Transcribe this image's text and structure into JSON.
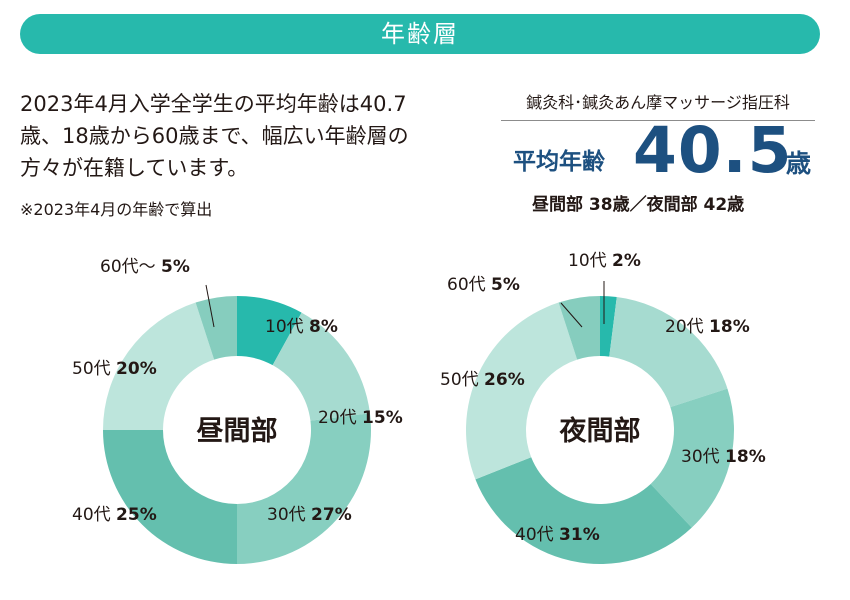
{
  "header": {
    "title": "年齢層"
  },
  "intro": {
    "lines": [
      "2023年4月入学全学生の平均年齢は40.7",
      "歳、18歳から60歳まで、幅広い年齢層の",
      "方々が在籍しています。"
    ],
    "note": "※2023年4月の年齢で算出"
  },
  "summary": {
    "dept": "鍼灸科･鍼灸あん摩マッサージ指圧科",
    "avg_label": "平均年齢",
    "avg_value": "40.5",
    "avg_unit": "歳",
    "breakdown": "昼間部 38歳／夜間部 42歳"
  },
  "colors": {
    "teens": "#27b9ac",
    "twenties": "#a6dbd0",
    "thirties": "#87cfc0",
    "forties": "#64bfae",
    "fifties": "#bde5dc",
    "sixties": "#86cdbe",
    "accent": "#1d5080"
  },
  "chart_data": [
    {
      "type": "pie",
      "title": "昼間部",
      "categories": [
        "10代",
        "20代",
        "30代",
        "40代",
        "50代",
        "60代～"
      ],
      "values": [
        8,
        15,
        27,
        25,
        20,
        5
      ],
      "value_labels": [
        "8%",
        "15%",
        "27%",
        "25%",
        "20%",
        "5%"
      ]
    },
    {
      "type": "pie",
      "title": "夜間部",
      "categories": [
        "10代",
        "20代",
        "30代",
        "40代",
        "50代",
        "60代"
      ],
      "values": [
        2,
        18,
        18,
        31,
        26,
        5
      ],
      "value_labels": [
        "2%",
        "18%",
        "18%",
        "31%",
        "26%",
        "5%"
      ]
    }
  ]
}
